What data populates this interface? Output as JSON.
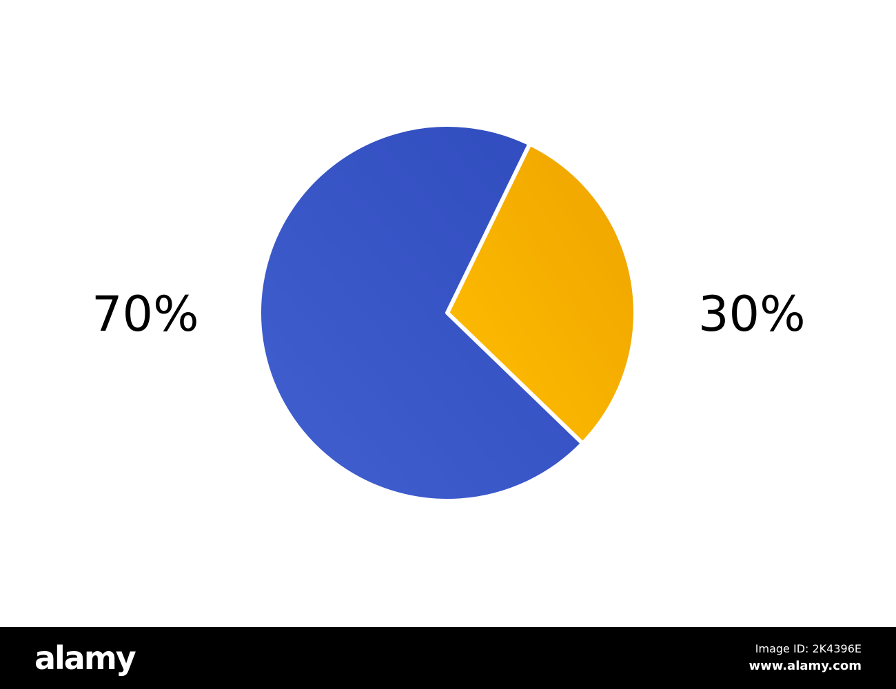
{
  "chart_data": {
    "type": "pie",
    "slices": [
      {
        "label": "30%",
        "value": 30,
        "color": "#FDB702"
      },
      {
        "label": "70%",
        "value": 70,
        "color": "#3A58C8"
      }
    ],
    "start_angle_deg": 26
  },
  "watermark": {
    "logo": "alamy",
    "image_id": "Image ID: 2K4396E",
    "site": "www.alamy.com"
  }
}
